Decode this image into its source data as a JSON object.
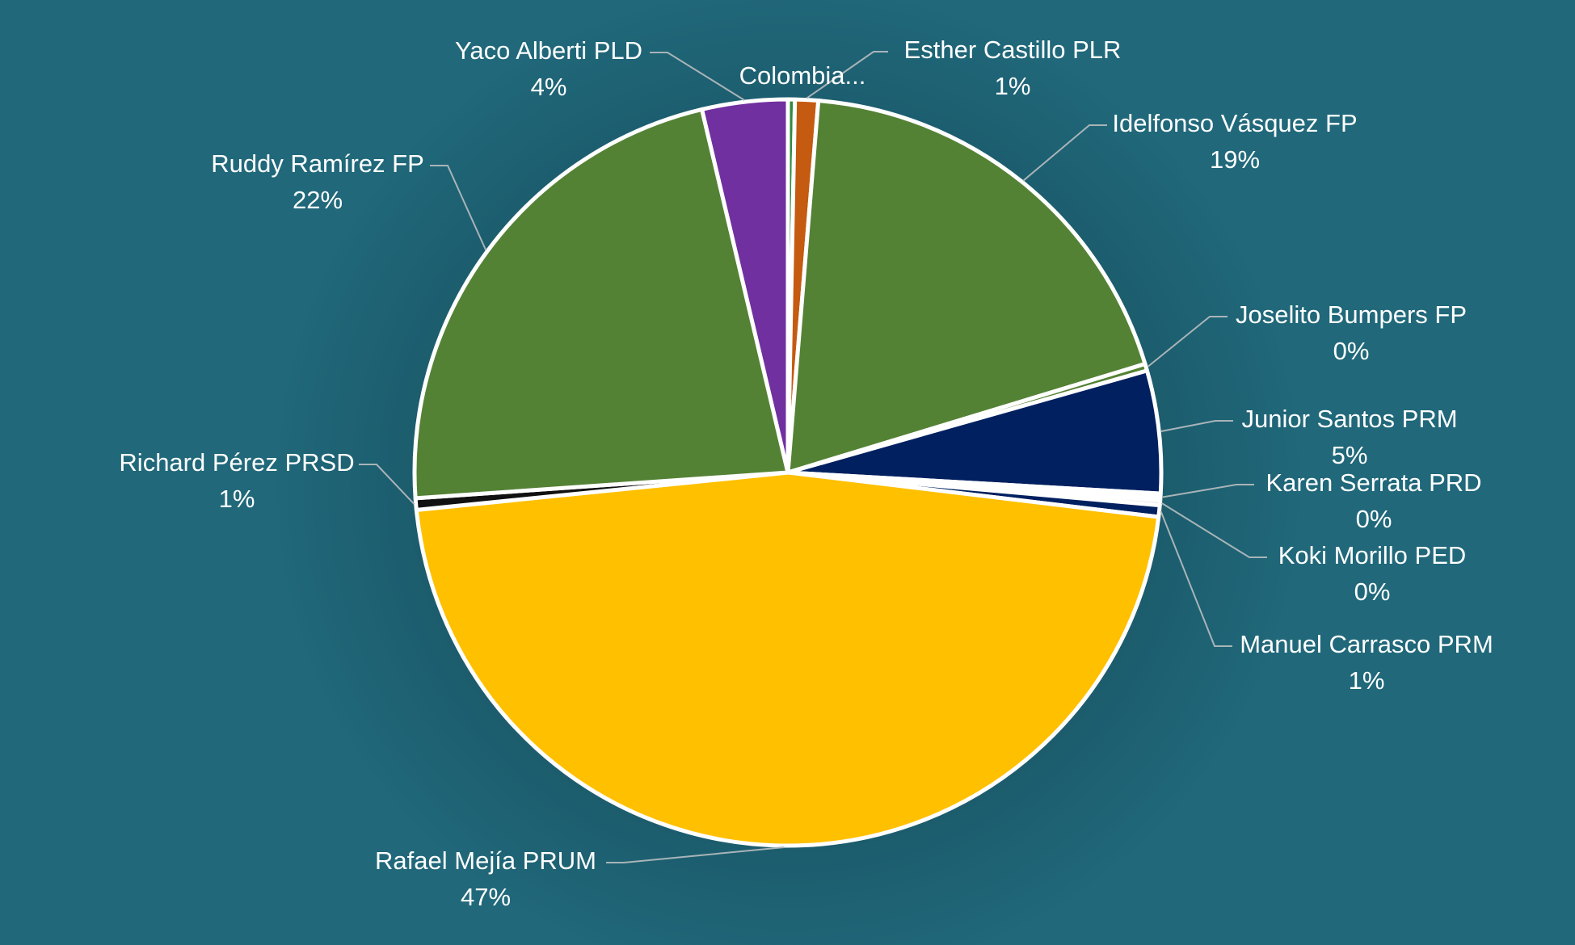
{
  "chart_data": {
    "type": "pie",
    "title": "",
    "start_angle_deg": 0,
    "slices": [
      {
        "label": "Colombia...",
        "pct_label": "",
        "value": 0.3,
        "color": "#2f8a3c"
      },
      {
        "label": "Esther Castillo PLR",
        "pct_label": "1%",
        "value": 1,
        "color": "#c55a11"
      },
      {
        "label": "Idelfonso Vásquez FP",
        "pct_label": "19%",
        "value": 19,
        "color": "#548235"
      },
      {
        "label": "Joselito Bumpers FP",
        "pct_label": "0%",
        "value": 0.3,
        "color": "#548235"
      },
      {
        "label": "Junior Santos PRM",
        "pct_label": "5%",
        "value": 5.3,
        "color": "#002060"
      },
      {
        "label": "Karen Serrata PRD",
        "pct_label": "0%",
        "value": 0.3,
        "color": "#ffffff"
      },
      {
        "label": "Koki Morillo PED",
        "pct_label": "0%",
        "value": 0.2,
        "color": "#dddddd"
      },
      {
        "label": "Manuel Carrasco PRM",
        "pct_label": "1%",
        "value": 0.5,
        "color": "#002060"
      },
      {
        "label": "Rafael Mejía PRUM",
        "pct_label": "47%",
        "value": 46.5,
        "color": "#ffc000"
      },
      {
        "label": "Richard Pérez PRSD",
        "pct_label": "1%",
        "value": 0.5,
        "color": "#111111"
      },
      {
        "label": "Ruddy Ramírez FP",
        "pct_label": "22%",
        "value": 22.4,
        "color": "#548235"
      },
      {
        "label": "Yaco Alberti PLD",
        "pct_label": "4%",
        "value": 3.7,
        "color": "#7030a0"
      }
    ]
  },
  "colors": {
    "background": "#20687a",
    "slice_border": "#ffffff",
    "label_text": "#ffffff"
  }
}
